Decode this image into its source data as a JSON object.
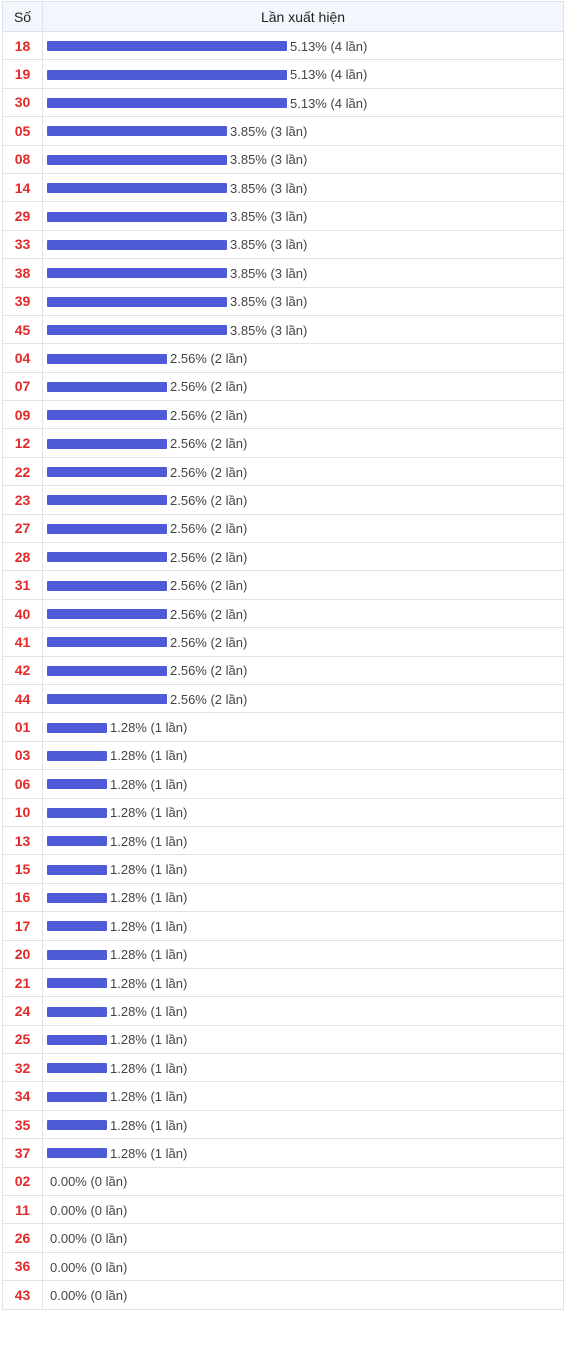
{
  "table": {
    "header_number": "Số",
    "header_frequency": "Lần xuất hiện",
    "max_count": 4,
    "bar_color": "#4f5ad9",
    "number_color": "#e22a2a",
    "rows": [
      {
        "number": "18",
        "count": 4,
        "label": "5.13% (4 lần)"
      },
      {
        "number": "19",
        "count": 4,
        "label": "5.13% (4 lần)"
      },
      {
        "number": "30",
        "count": 4,
        "label": "5.13% (4 lần)"
      },
      {
        "number": "05",
        "count": 3,
        "label": "3.85% (3 lần)"
      },
      {
        "number": "08",
        "count": 3,
        "label": "3.85% (3 lần)"
      },
      {
        "number": "14",
        "count": 3,
        "label": "3.85% (3 lần)"
      },
      {
        "number": "29",
        "count": 3,
        "label": "3.85% (3 lần)"
      },
      {
        "number": "33",
        "count": 3,
        "label": "3.85% (3 lần)"
      },
      {
        "number": "38",
        "count": 3,
        "label": "3.85% (3 lần)"
      },
      {
        "number": "39",
        "count": 3,
        "label": "3.85% (3 lần)"
      },
      {
        "number": "45",
        "count": 3,
        "label": "3.85% (3 lần)"
      },
      {
        "number": "04",
        "count": 2,
        "label": "2.56% (2 lần)"
      },
      {
        "number": "07",
        "count": 2,
        "label": "2.56% (2 lần)"
      },
      {
        "number": "09",
        "count": 2,
        "label": "2.56% (2 lần)"
      },
      {
        "number": "12",
        "count": 2,
        "label": "2.56% (2 lần)"
      },
      {
        "number": "22",
        "count": 2,
        "label": "2.56% (2 lần)"
      },
      {
        "number": "23",
        "count": 2,
        "label": "2.56% (2 lần)"
      },
      {
        "number": "27",
        "count": 2,
        "label": "2.56% (2 lần)"
      },
      {
        "number": "28",
        "count": 2,
        "label": "2.56% (2 lần)"
      },
      {
        "number": "31",
        "count": 2,
        "label": "2.56% (2 lần)"
      },
      {
        "number": "40",
        "count": 2,
        "label": "2.56% (2 lần)"
      },
      {
        "number": "41",
        "count": 2,
        "label": "2.56% (2 lần)"
      },
      {
        "number": "42",
        "count": 2,
        "label": "2.56% (2 lần)"
      },
      {
        "number": "44",
        "count": 2,
        "label": "2.56% (2 lần)"
      },
      {
        "number": "01",
        "count": 1,
        "label": "1.28% (1 lần)"
      },
      {
        "number": "03",
        "count": 1,
        "label": "1.28% (1 lần)"
      },
      {
        "number": "06",
        "count": 1,
        "label": "1.28% (1 lần)"
      },
      {
        "number": "10",
        "count": 1,
        "label": "1.28% (1 lần)"
      },
      {
        "number": "13",
        "count": 1,
        "label": "1.28% (1 lần)"
      },
      {
        "number": "15",
        "count": 1,
        "label": "1.28% (1 lần)"
      },
      {
        "number": "16",
        "count": 1,
        "label": "1.28% (1 lần)"
      },
      {
        "number": "17",
        "count": 1,
        "label": "1.28% (1 lần)"
      },
      {
        "number": "20",
        "count": 1,
        "label": "1.28% (1 lần)"
      },
      {
        "number": "21",
        "count": 1,
        "label": "1.28% (1 lần)"
      },
      {
        "number": "24",
        "count": 1,
        "label": "1.28% (1 lần)"
      },
      {
        "number": "25",
        "count": 1,
        "label": "1.28% (1 lần)"
      },
      {
        "number": "32",
        "count": 1,
        "label": "1.28% (1 lần)"
      },
      {
        "number": "34",
        "count": 1,
        "label": "1.28% (1 lần)"
      },
      {
        "number": "35",
        "count": 1,
        "label": "1.28% (1 lần)"
      },
      {
        "number": "37",
        "count": 1,
        "label": "1.28% (1 lần)"
      },
      {
        "number": "02",
        "count": 0,
        "label": "0.00% (0 lần)"
      },
      {
        "number": "11",
        "count": 0,
        "label": "0.00% (0 lần)"
      },
      {
        "number": "26",
        "count": 0,
        "label": "0.00% (0 lần)"
      },
      {
        "number": "36",
        "count": 0,
        "label": "0.00% (0 lần)"
      },
      {
        "number": "43",
        "count": 0,
        "label": "0.00% (0 lần)"
      }
    ]
  }
}
